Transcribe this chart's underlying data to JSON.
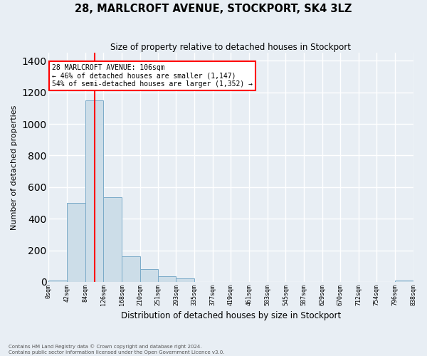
{
  "title": "28, MARLCROFT AVENUE, STOCKPORT, SK4 3LZ",
  "subtitle": "Size of property relative to detached houses in Stockport",
  "xlabel": "Distribution of detached houses by size in Stockport",
  "ylabel": "Number of detached properties",
  "bar_edges": [
    0,
    42,
    84,
    126,
    168,
    210,
    251,
    293,
    335,
    377,
    419,
    461,
    503,
    545,
    587,
    629,
    670,
    712,
    754,
    796,
    838
  ],
  "bar_heights": [
    10,
    500,
    1150,
    535,
    160,
    80,
    35,
    20,
    0,
    0,
    0,
    0,
    0,
    0,
    0,
    0,
    0,
    0,
    0,
    10
  ],
  "tick_labels": [
    "0sqm",
    "42sqm",
    "84sqm",
    "126sqm",
    "168sqm",
    "210sqm",
    "251sqm",
    "293sqm",
    "335sqm",
    "377sqm",
    "419sqm",
    "461sqm",
    "503sqm",
    "545sqm",
    "587sqm",
    "629sqm",
    "670sqm",
    "712sqm",
    "754sqm",
    "796sqm",
    "838sqm"
  ],
  "bar_color": "#ccdde8",
  "bar_edge_color": "#7aaac8",
  "property_line_x": 106,
  "property_line_color": "red",
  "annotation_text": "28 MARLCROFT AVENUE: 106sqm\n← 46% of detached houses are smaller (1,147)\n54% of semi-detached houses are larger (1,352) →",
  "annotation_box_color": "white",
  "annotation_box_edge_color": "red",
  "ylim": [
    0,
    1450
  ],
  "yticks": [
    0,
    200,
    400,
    600,
    800,
    1000,
    1200,
    1400
  ],
  "footnote1": "Contains HM Land Registry data © Crown copyright and database right 2024.",
  "footnote2": "Contains public sector information licensed under the Open Government Licence v3.0.",
  "bg_color": "#e8eef4",
  "grid_color": "white"
}
